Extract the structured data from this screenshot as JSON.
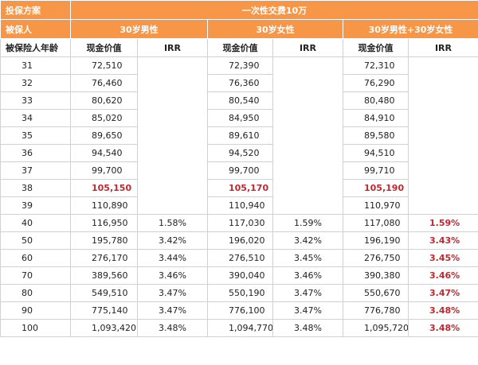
{
  "header": {
    "plan_label": "投保方案",
    "plan": "一次性交费10万",
    "insured_label": "被保人",
    "groups": [
      "30岁男性",
      "30岁女性",
      "30岁男性+30岁女性"
    ],
    "age_label": "被保险人年龄",
    "cash_label": "现金价值",
    "irr_label": "IRR"
  },
  "highlight_color": "#c0282d",
  "highlight_last_irr": true,
  "table": {
    "rows": [
      {
        "age": "31",
        "cash": [
          "72,510",
          "72,390",
          "72,310"
        ]
      },
      {
        "age": "32",
        "cash": [
          "76,460",
          "76,360",
          "76,290"
        ]
      },
      {
        "age": "33",
        "cash": [
          "80,620",
          "80,540",
          "80,480"
        ]
      },
      {
        "age": "34",
        "cash": [
          "85,020",
          "84,950",
          "84,910"
        ]
      },
      {
        "age": "35",
        "cash": [
          "89,650",
          "89,610",
          "89,580"
        ]
      },
      {
        "age": "36",
        "cash": [
          "94,540",
          "94,520",
          "94,510"
        ]
      },
      {
        "age": "37",
        "cash": [
          "99,700",
          "99,700",
          "99,710"
        ]
      },
      {
        "age": "38",
        "cash": [
          "105,150",
          "105,170",
          "105,190"
        ],
        "highlight": true
      },
      {
        "age": "39",
        "cash": [
          "110,890",
          "110,940",
          "110,970"
        ]
      },
      {
        "age": "40",
        "cash": [
          "116,950",
          "117,030",
          "117,080"
        ],
        "irr": [
          "1.58%",
          "1.59%",
          "1.59%"
        ]
      },
      {
        "age": "50",
        "cash": [
          "195,780",
          "196,020",
          "196,190"
        ],
        "irr": [
          "3.42%",
          "3.42%",
          "3.43%"
        ]
      },
      {
        "age": "60",
        "cash": [
          "276,170",
          "276,510",
          "276,750"
        ],
        "irr": [
          "3.44%",
          "3.45%",
          "3.45%"
        ]
      },
      {
        "age": "70",
        "cash": [
          "389,560",
          "390,040",
          "390,380"
        ],
        "irr": [
          "3.46%",
          "3.46%",
          "3.46%"
        ]
      },
      {
        "age": "80",
        "cash": [
          "549,510",
          "550,190",
          "550,670"
        ],
        "irr": [
          "3.47%",
          "3.47%",
          "3.47%"
        ]
      },
      {
        "age": "90",
        "cash": [
          "775,140",
          "776,100",
          "776,780"
        ],
        "irr": [
          "3.47%",
          "3.47%",
          "3.48%"
        ]
      },
      {
        "age": "100",
        "cash": [
          "1,093,420",
          "1,094,770",
          "1,095,720"
        ],
        "irr": [
          "3.48%",
          "3.48%",
          "3.48%"
        ]
      }
    ]
  }
}
